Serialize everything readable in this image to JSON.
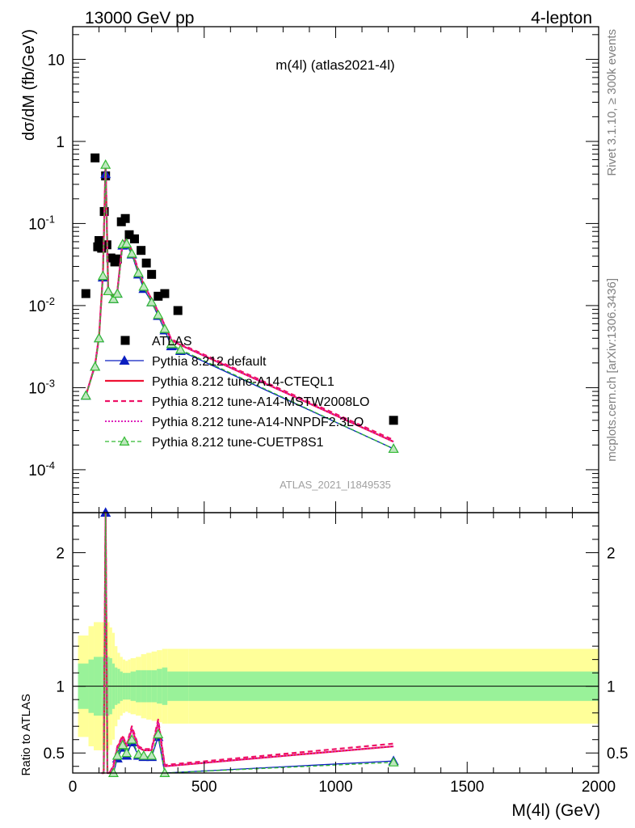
{
  "header": {
    "left": "13000 GeV pp",
    "right": "4-lepton",
    "plot_title": "m(4l) (atlas2021-4l)",
    "analysis_id": "ATLAS_2021_I1849535",
    "side_top": "Rivet 3.1.10, ≥ 300k events",
    "side_bottom": "mcplots.cern.ch [arXiv:1306.3436]"
  },
  "chart_data": [
    {
      "type": "scatter",
      "panel": "main",
      "ylabel": "dσ/dM (fb/GeV)",
      "yscale": "log",
      "ylim": [
        3e-05,
        25
      ],
      "xlim": [
        0,
        2000
      ],
      "grid": false,
      "legend_position": "bottom-left",
      "legend": [
        "ATLAS",
        "Pythia 8.212 default",
        "Pythia 8.212 tune-A14-CTEQL1",
        "Pythia 8.212 tune-A14-MSTW2008LO",
        "Pythia 8.212 tune-A14-NNPDF2.3LO",
        "Pythia 8.212 tune-CUETP8S1"
      ],
      "y_tick_labels": [
        "10",
        "1",
        "10^-1",
        "10^-2",
        "10^-3",
        "10^-4"
      ],
      "series": [
        {
          "name": "ATLAS",
          "x": [
            50,
            85,
            95,
            100,
            110,
            120,
            125,
            130,
            145,
            160,
            170,
            185,
            200,
            215,
            235,
            260,
            280,
            300,
            325,
            350,
            400,
            1220
          ],
          "y": [
            0.014,
            0.63,
            0.052,
            0.062,
            0.05,
            0.14,
            0.38,
            0.055,
            0.038,
            0.034,
            0.037,
            0.105,
            0.115,
            0.073,
            0.065,
            0.047,
            0.033,
            0.024,
            0.013,
            0.014,
            0.0087,
            0.0004
          ]
        },
        {
          "name": "Pythia 8.212 default",
          "x": [
            50,
            85,
            100,
            115,
            125,
            135,
            155,
            170,
            190,
            205,
            225,
            250,
            270,
            300,
            325,
            350,
            375,
            410,
            1220
          ],
          "y": [
            0.0008,
            0.0018,
            0.004,
            0.022,
            0.4,
            0.015,
            0.012,
            0.014,
            0.054,
            0.055,
            0.042,
            0.024,
            0.016,
            0.011,
            0.0075,
            0.005,
            0.0032,
            0.0028,
            0.00018
          ]
        },
        {
          "name": "Pythia 8.212 tune-A14-CTEQL1",
          "x": [
            50,
            85,
            100,
            115,
            125,
            135,
            155,
            170,
            190,
            205,
            225,
            250,
            270,
            300,
            325,
            350,
            375,
            410,
            1220
          ],
          "y": [
            0.0008,
            0.0019,
            0.0042,
            0.024,
            0.55,
            0.016,
            0.013,
            0.015,
            0.06,
            0.062,
            0.046,
            0.026,
            0.018,
            0.012,
            0.0083,
            0.0057,
            0.0038,
            0.0033,
            0.00022
          ]
        },
        {
          "name": "Pythia 8.212 tune-A14-MSTW2008LO",
          "x": [
            50,
            85,
            100,
            115,
            125,
            135,
            155,
            170,
            190,
            205,
            225,
            250,
            270,
            300,
            325,
            350,
            375,
            410,
            1220
          ],
          "y": [
            0.0008,
            0.0019,
            0.0042,
            0.024,
            0.55,
            0.016,
            0.013,
            0.015,
            0.061,
            0.063,
            0.047,
            0.027,
            0.018,
            0.012,
            0.0085,
            0.0058,
            0.0039,
            0.0034,
            0.00023
          ]
        },
        {
          "name": "Pythia 8.212 tune-A14-NNPDF2.3LO",
          "x": [
            50,
            85,
            100,
            115,
            125,
            135,
            155,
            170,
            190,
            205,
            225,
            250,
            270,
            300,
            325,
            350,
            375,
            410,
            1220
          ],
          "y": [
            0.0008,
            0.0019,
            0.0042,
            0.024,
            0.55,
            0.016,
            0.013,
            0.015,
            0.06,
            0.062,
            0.046,
            0.026,
            0.018,
            0.012,
            0.0084,
            0.0057,
            0.0038,
            0.0033,
            0.00022
          ]
        },
        {
          "name": "Pythia 8.212 tune-CUETP8S1",
          "x": [
            50,
            85,
            100,
            115,
            125,
            135,
            155,
            170,
            190,
            205,
            225,
            250,
            270,
            300,
            325,
            350,
            375,
            410,
            1220
          ],
          "y": [
            0.0008,
            0.0018,
            0.004,
            0.023,
            0.52,
            0.015,
            0.012,
            0.014,
            0.056,
            0.057,
            0.043,
            0.025,
            0.017,
            0.011,
            0.0077,
            0.0052,
            0.0034,
            0.0029,
            0.00018
          ]
        }
      ]
    },
    {
      "type": "line",
      "panel": "ratio",
      "xlabel": "M(4l) (GeV)",
      "ylabel": "Ratio to ATLAS",
      "ylim": [
        0.35,
        2.3
      ],
      "xlim": [
        0,
        2000
      ],
      "x_ticks": [
        0,
        500,
        1000,
        1500,
        2000
      ],
      "y_ticks": [
        0.5,
        1,
        2
      ],
      "reference_line": 1,
      "bands": {
        "x_edges": [
          20,
          60,
          80,
          110,
          120,
          130,
          140,
          150,
          160,
          170,
          180,
          190,
          200,
          210,
          220,
          240,
          260,
          280,
          300,
          320,
          340,
          360,
          440,
          2000
        ],
        "inner_half_width": [
          0.17,
          0.2,
          0.22,
          0.22,
          0.22,
          0.22,
          0.21,
          0.17,
          0.14,
          0.13,
          0.11,
          0.1,
          0.1,
          0.1,
          0.11,
          0.12,
          0.12,
          0.12,
          0.12,
          0.13,
          0.14,
          0.11,
          0.11
        ],
        "outer_half_width": [
          0.38,
          0.45,
          0.48,
          0.48,
          0.48,
          0.48,
          0.44,
          0.4,
          0.3,
          0.25,
          0.22,
          0.2,
          0.19,
          0.2,
          0.21,
          0.22,
          0.24,
          0.25,
          0.26,
          0.27,
          0.28,
          0.28,
          0.28
        ]
      },
      "series": [
        {
          "name": "Pythia 8.212 default",
          "x": [
            110,
            118,
            125,
            132,
            140,
            155,
            170,
            190,
            205,
            225,
            250,
            270,
            300,
            325,
            350,
            1220
          ],
          "y": [
            0.33,
            0.28,
            2.3,
            0.3,
            0.25,
            0.33,
            0.46,
            0.54,
            0.48,
            0.58,
            0.48,
            0.47,
            0.47,
            0.62,
            0.34,
            0.44
          ]
        },
        {
          "name": "Pythia 8.212 tune-A14-CTEQL1",
          "x": [
            110,
            118,
            125,
            132,
            140,
            155,
            170,
            190,
            205,
            225,
            250,
            270,
            300,
            325,
            350,
            1220
          ],
          "y": [
            0.35,
            0.3,
            2.5,
            0.3,
            0.28,
            0.4,
            0.54,
            0.62,
            0.55,
            0.68,
            0.54,
            0.52,
            0.52,
            0.73,
            0.4,
            0.55
          ]
        },
        {
          "name": "Pythia 8.212 tune-A14-MSTW2008LO",
          "x": [
            110,
            118,
            125,
            132,
            140,
            155,
            170,
            190,
            205,
            225,
            250,
            270,
            300,
            325,
            350,
            1220
          ],
          "y": [
            0.35,
            0.3,
            2.5,
            0.3,
            0.28,
            0.41,
            0.55,
            0.63,
            0.56,
            0.7,
            0.55,
            0.53,
            0.53,
            0.75,
            0.41,
            0.57
          ]
        },
        {
          "name": "Pythia 8.212 tune-A14-NNPDF2.3LO",
          "x": [
            110,
            118,
            125,
            132,
            140,
            155,
            170,
            190,
            205,
            225,
            250,
            270,
            300,
            325,
            350,
            1220
          ],
          "y": [
            0.35,
            0.3,
            2.5,
            0.3,
            0.28,
            0.4,
            0.54,
            0.61,
            0.55,
            0.68,
            0.54,
            0.52,
            0.52,
            0.73,
            0.4,
            0.55
          ]
        },
        {
          "name": "Pythia 8.212 tune-CUETP8S1",
          "x": [
            110,
            118,
            125,
            132,
            140,
            155,
            170,
            190,
            205,
            225,
            250,
            270,
            300,
            325,
            350,
            1220
          ],
          "y": [
            0.33,
            0.28,
            2.35,
            0.3,
            0.25,
            0.35,
            0.48,
            0.56,
            0.5,
            0.6,
            0.49,
            0.48,
            0.48,
            0.64,
            0.35,
            0.43
          ]
        }
      ]
    }
  ],
  "colors": {
    "ATLAS": "#000000",
    "Pythia 8.212 default": "#0b1fc0",
    "Pythia 8.212 tune-A14-CTEQL1": "#ee1133",
    "Pythia 8.212 tune-A14-MSTW2008LO": "#ee1166",
    "Pythia 8.212 tune-A14-NNPDF2.3LO": "#dd22bb",
    "Pythia 8.212 tune-CUETP8S1": "#33bb33",
    "band_inner": "#99f299",
    "band_outer": "#ffff99",
    "side_text": "#808080"
  }
}
